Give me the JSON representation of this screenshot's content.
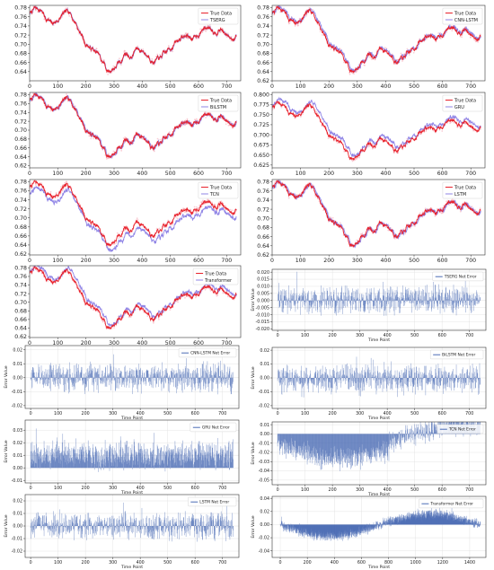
{
  "colors": {
    "true_line": "#e8212b",
    "pred_line": "#8f84e6",
    "error_bar": "#4a6bb5",
    "frame": "#333333",
    "grid": "#dddddd"
  },
  "chart_data": [
    {
      "type": "line",
      "legend": [
        "True Data",
        "TSERG"
      ],
      "legend_position": "top-right",
      "grid": false,
      "xlim": [
        0,
        750
      ],
      "ylim": [
        0.62,
        0.785
      ],
      "xticks": [
        "0",
        "100",
        "200",
        "300",
        "400",
        "500",
        "600",
        "700"
      ],
      "xtick_values": [
        0,
        100,
        200,
        300,
        400,
        500,
        600,
        700
      ],
      "yticks": [
        "0.64",
        "0.66",
        "0.68",
        "0.70",
        "0.72",
        "0.74",
        "0.76",
        "0.78"
      ],
      "ytick_values": [
        0.64,
        0.66,
        0.68,
        0.7,
        0.72,
        0.74,
        0.76,
        0.78
      ],
      "pred_style": {
        "offset": 0,
        "lag": 1,
        "noise": 0.003
      }
    },
    {
      "type": "line",
      "legend": [
        "True Data",
        "CNN-LSTM"
      ],
      "legend_position": "top-right",
      "grid": false,
      "xlim": [
        0,
        750
      ],
      "ylim": [
        0.62,
        0.785
      ],
      "xticks": [
        "0",
        "100",
        "200",
        "300",
        "400",
        "500",
        "600",
        "700"
      ],
      "xtick_values": [
        0,
        100,
        200,
        300,
        400,
        500,
        600,
        700
      ],
      "yticks": [
        "0.62",
        "0.64",
        "0.66",
        "0.68",
        "0.70",
        "0.72",
        "0.74",
        "0.76",
        "0.78"
      ],
      "ytick_values": [
        0.62,
        0.64,
        0.66,
        0.68,
        0.7,
        0.72,
        0.74,
        0.76,
        0.78
      ],
      "pred_style": {
        "offset": 0.002,
        "lag": 4,
        "noise": 0.004
      }
    },
    {
      "type": "line",
      "legend": [
        "True Data",
        "BiLSTM"
      ],
      "legend_position": "top-right",
      "grid": false,
      "xlim": [
        0,
        750
      ],
      "ylim": [
        0.615,
        0.785
      ],
      "xticks": [
        "0",
        "100",
        "200",
        "300",
        "400",
        "500",
        "600",
        "700"
      ],
      "xtick_values": [
        0,
        100,
        200,
        300,
        400,
        500,
        600,
        700
      ],
      "yticks": [
        "0.62",
        "0.64",
        "0.66",
        "0.68",
        "0.70",
        "0.72",
        "0.74",
        "0.76",
        "0.78"
      ],
      "ytick_values": [
        0.62,
        0.64,
        0.66,
        0.68,
        0.7,
        0.72,
        0.74,
        0.76,
        0.78
      ],
      "pred_style": {
        "offset": 0,
        "lag": 3,
        "noise": 0.004
      }
    },
    {
      "type": "line",
      "legend": [
        "True Data",
        "GRU"
      ],
      "legend_position": "top-right",
      "grid": false,
      "xlim": [
        0,
        750
      ],
      "ylim": [
        0.618,
        0.805
      ],
      "xticks": [
        "0",
        "100",
        "200",
        "300",
        "400",
        "500",
        "600",
        "700"
      ],
      "xtick_values": [
        0,
        100,
        200,
        300,
        400,
        500,
        600,
        700
      ],
      "yticks": [
        "0.625",
        "0.650",
        "0.675",
        "0.700",
        "0.725",
        "0.750",
        "0.775",
        "0.800"
      ],
      "ytick_values": [
        0.625,
        0.65,
        0.675,
        0.7,
        0.725,
        0.75,
        0.775,
        0.8
      ],
      "pred_style": {
        "offset": 0.008,
        "lag": 6,
        "noise": 0.004
      }
    },
    {
      "type": "line",
      "legend": [
        "True Data",
        "TCN"
      ],
      "legend_position": "top-right",
      "grid": false,
      "xlim": [
        0,
        750
      ],
      "ylim": [
        0.618,
        0.785
      ],
      "xticks": [
        "0",
        "100",
        "200",
        "300",
        "400",
        "500",
        "600",
        "700"
      ],
      "xtick_values": [
        0,
        100,
        200,
        300,
        400,
        500,
        600,
        700
      ],
      "yticks": [
        "0.62",
        "0.64",
        "0.66",
        "0.68",
        "0.70",
        "0.72",
        "0.74",
        "0.76",
        "0.78"
      ],
      "ytick_values": [
        0.62,
        0.64,
        0.66,
        0.68,
        0.7,
        0.72,
        0.74,
        0.76,
        0.78
      ],
      "pred_style": {
        "offset": -0.012,
        "lag": 5,
        "noise": 0.005
      }
    },
    {
      "type": "line",
      "legend": [
        "True Data",
        "LSTM"
      ],
      "legend_position": "top-right",
      "grid": false,
      "xlim": [
        0,
        750
      ],
      "ylim": [
        0.62,
        0.785
      ],
      "xticks": [
        "0",
        "100",
        "200",
        "300",
        "400",
        "500",
        "600",
        "700"
      ],
      "xtick_values": [
        0,
        100,
        200,
        300,
        400,
        500,
        600,
        700
      ],
      "yticks": [
        "0.62",
        "0.64",
        "0.66",
        "0.68",
        "0.70",
        "0.72",
        "0.74",
        "0.76",
        "0.78"
      ],
      "ytick_values": [
        0.62,
        0.64,
        0.66,
        0.68,
        0.7,
        0.72,
        0.74,
        0.76,
        0.78
      ],
      "pred_style": {
        "offset": 0,
        "lag": 4,
        "noise": 0.004
      }
    },
    {
      "type": "line",
      "legend": [
        "True Data",
        "Transformer"
      ],
      "legend_position": "top-right",
      "grid": false,
      "xlim": [
        0,
        750
      ],
      "ylim": [
        0.618,
        0.785
      ],
      "xticks": [
        "0",
        "100",
        "200",
        "300",
        "400",
        "500",
        "600",
        "700"
      ],
      "xtick_values": [
        0,
        100,
        200,
        300,
        400,
        500,
        600,
        700
      ],
      "yticks": [
        "0.62",
        "0.64",
        "0.66",
        "0.68",
        "0.70",
        "0.72",
        "0.74",
        "0.76",
        "0.78"
      ],
      "ytick_values": [
        0.62,
        0.64,
        0.66,
        0.68,
        0.7,
        0.72,
        0.74,
        0.76,
        0.78
      ],
      "pred_style": {
        "offset": 0.006,
        "lag": 6,
        "noise": 0.004
      }
    },
    {
      "type": "bar",
      "legend": [
        "TSERG Net Error"
      ],
      "legend_position": "top-right",
      "grid": true,
      "xlabel": "Time Point",
      "ylabel": "Error Value",
      "xlim": [
        -20,
        760
      ],
      "ylim": [
        -0.021,
        0.022
      ],
      "xticks": [
        "0",
        "100",
        "200",
        "300",
        "400",
        "500",
        "600",
        "700"
      ],
      "xtick_values": [
        0,
        100,
        200,
        300,
        400,
        500,
        600,
        700
      ],
      "yticks": [
        "-0.020",
        "-0.015",
        "-0.010",
        "-0.005",
        "0.000",
        "0.005",
        "0.010",
        "0.015",
        "0.020"
      ],
      "ytick_values": [
        -0.02,
        -0.015,
        -0.01,
        -0.005,
        0,
        0.005,
        0.01,
        0.015,
        0.02
      ],
      "error_profile": {
        "n": 740,
        "amp": 0.016,
        "bias": 0.0005,
        "drift": 0
      }
    },
    {
      "type": "bar",
      "legend": [
        "CNN-LSTM Net Error"
      ],
      "legend_position": "top-right",
      "grid": true,
      "xlabel": "Time Point",
      "ylabel": "Error Value",
      "xlim": [
        -20,
        760
      ],
      "ylim": [
        -0.022,
        0.023
      ],
      "xticks": [
        "0",
        "100",
        "200",
        "300",
        "400",
        "500",
        "600",
        "700"
      ],
      "xtick_values": [
        0,
        100,
        200,
        300,
        400,
        500,
        600,
        700
      ],
      "yticks": [
        "-0.02",
        "-0.01",
        "0.00",
        "0.01",
        "0.02"
      ],
      "ytick_values": [
        -0.02,
        -0.01,
        0,
        0.01,
        0.02
      ],
      "error_profile": {
        "n": 740,
        "amp": 0.017,
        "bias": 0.0,
        "drift": 0
      }
    },
    {
      "type": "bar",
      "legend": [
        "BiLSTM Net Error"
      ],
      "legend_position": "top-right",
      "grid": true,
      "xlabel": "Time Point",
      "ylabel": "Error Value",
      "xlim": [
        -20,
        760
      ],
      "ylim": [
        -0.022,
        0.022
      ],
      "xticks": [
        "0",
        "100",
        "200",
        "300",
        "400",
        "500",
        "600",
        "700"
      ],
      "xtick_values": [
        0,
        100,
        200,
        300,
        400,
        500,
        600,
        700
      ],
      "yticks": [
        "-0.02",
        "-0.01",
        "0.00",
        "0.01",
        "0.02"
      ],
      "ytick_values": [
        -0.02,
        -0.01,
        0,
        0.01,
        0.02
      ],
      "error_profile": {
        "n": 740,
        "amp": 0.018,
        "bias": -0.001,
        "drift": 0
      }
    },
    {
      "type": "bar",
      "legend": [
        "GRU Net Error"
      ],
      "legend_position": "top-right",
      "grid": true,
      "xlabel": "Time Point",
      "ylabel": "Error Value",
      "xlim": [
        -20,
        760
      ],
      "ylim": [
        -0.012,
        0.038
      ],
      "xticks": [
        "0",
        "100",
        "200",
        "300",
        "400",
        "500",
        "600",
        "700"
      ],
      "xtick_values": [
        0,
        100,
        200,
        300,
        400,
        500,
        600,
        700
      ],
      "yticks": [
        "-0.01",
        "0.00",
        "0.01",
        "0.02",
        "0.03"
      ],
      "ytick_values": [
        -0.01,
        0,
        0.01,
        0.02,
        0.03
      ],
      "error_profile": {
        "n": 740,
        "amp": 0.018,
        "bias": 0.01,
        "drift": 0
      }
    },
    {
      "type": "bar",
      "legend": [
        "TCN Net Error"
      ],
      "legend_position": "top-right",
      "grid": true,
      "xlabel": "Time Point",
      "ylabel": "Error Value",
      "xlim": [
        -20,
        760
      ],
      "ylim": [
        -0.055,
        0.013
      ],
      "xticks": [
        "0",
        "100",
        "200",
        "300",
        "400",
        "500",
        "600",
        "700"
      ],
      "xtick_values": [
        0,
        100,
        200,
        300,
        400,
        500,
        600,
        700
      ],
      "yticks": [
        "-0.05",
        "-0.04",
        "-0.03",
        "-0.02",
        "-0.01",
        "0.00",
        "0.01"
      ],
      "ytick_values": [
        -0.05,
        -0.04,
        -0.03,
        -0.02,
        -0.01,
        0,
        0.01
      ],
      "error_profile": {
        "n": 740,
        "amp": 0.02,
        "bias": -0.015,
        "drift": 1
      }
    },
    {
      "type": "bar",
      "legend": [
        "LSTM Net Error"
      ],
      "legend_position": "top-right",
      "grid": true,
      "xlabel": "Time Point",
      "ylabel": "Error Value",
      "xlim": [
        -20,
        760
      ],
      "ylim": [
        -0.025,
        0.025
      ],
      "xticks": [
        "0",
        "100",
        "200",
        "300",
        "400",
        "500",
        "600",
        "700"
      ],
      "xtick_values": [
        0,
        100,
        200,
        300,
        400,
        500,
        600,
        700
      ],
      "yticks": [
        "-0.02",
        "-0.01",
        "0.00",
        "0.01",
        "0.02"
      ],
      "ytick_values": [
        -0.02,
        -0.01,
        0,
        0.01,
        0.02
      ],
      "error_profile": {
        "n": 740,
        "amp": 0.018,
        "bias": 0.0,
        "drift": 0
      }
    },
    {
      "type": "bar",
      "legend": [
        "Transformer Net Error"
      ],
      "legend_position": "top-right",
      "grid": true,
      "xlabel": "Time Point",
      "ylabel": "Error Value",
      "xlim": [
        -60,
        1520
      ],
      "ylim": [
        -0.05,
        0.043
      ],
      "xticks": [
        "0",
        "200",
        "400",
        "600",
        "800",
        "1000",
        "1200",
        "1400"
      ],
      "xtick_values": [
        0,
        200,
        400,
        600,
        800,
        1000,
        1200,
        1400
      ],
      "yticks": [
        "-0.04",
        "-0.02",
        "0.00",
        "0.02",
        "0.04"
      ],
      "ytick_values": [
        -0.04,
        -0.02,
        0,
        0.02,
        0.04
      ],
      "error_profile": {
        "n": 1480,
        "amp": 0.012,
        "bias": 0.0,
        "drift": 2
      }
    }
  ]
}
